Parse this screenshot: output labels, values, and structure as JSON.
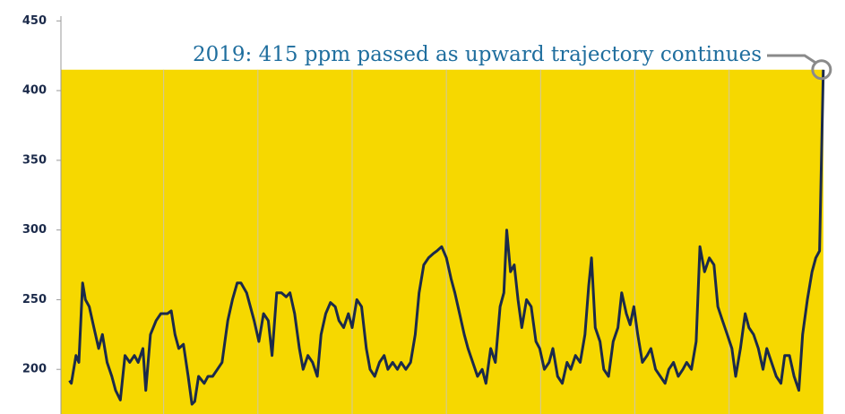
{
  "chart_data": {
    "type": "line",
    "annotation": {
      "text": "2019: 415 ppm passed as upward trajectory continues",
      "value": 415
    },
    "x": [
      -800,
      -798,
      -793,
      -790,
      -786,
      -783,
      -779,
      -774,
      -769,
      -765,
      -760,
      -755,
      -751,
      -746,
      -741,
      -736,
      -731,
      -727,
      -722,
      -719,
      -714,
      -708,
      -703,
      -696,
      -692,
      -688,
      -684,
      -679,
      -674,
      -670,
      -667,
      -663,
      -657,
      -653,
      -648,
      -643,
      -638,
      -632,
      -627,
      -622,
      -618,
      -612,
      -608,
      -604,
      -599,
      -594,
      -589,
      -585,
      -580,
      -575,
      -570,
      -566,
      -561,
      -556,
      -552,
      -547,
      -542,
      -537,
      -533,
      -528,
      -523,
      -518,
      -514,
      -509,
      -504,
      -500,
      -495,
      -490,
      -485,
      -481,
      -476,
      -471,
      -466,
      -462,
      -457,
      -452,
      -448,
      -443,
      -438,
      -433,
      -429,
      -424,
      -419,
      -414,
      -410,
      -405,
      -400,
      -395,
      -391,
      -386,
      -381,
      -377,
      -372,
      -367,
      -362,
      -358,
      -353,
      -348,
      -343,
      -339,
      -336,
      -332,
      -328,
      -324,
      -320,
      -315,
      -310,
      -305,
      -301,
      -296,
      -291,
      -287,
      -282,
      -277,
      -272,
      -268,
      -263,
      -258,
      -253,
      -249,
      -246,
      -242,
      -237,
      -233,
      -228,
      -223,
      -218,
      -214,
      -209,
      -205,
      -201,
      -197,
      -192,
      -187,
      -183,
      -178,
      -173,
      -168,
      -164,
      -159,
      -154,
      -149,
      -145,
      -140,
      -135,
      -131,
      -126,
      -121,
      -116,
      -112,
      -107,
      -102,
      -97,
      -93,
      -88,
      -83,
      -79,
      -74,
      -69,
      -64,
      -60,
      -55,
      -50,
      -45,
      -41,
      -36,
      -31,
      -26,
      -22,
      -17,
      -12,
      -8,
      -4,
      0
    ],
    "values": [
      192,
      190,
      210,
      205,
      262,
      250,
      245,
      230,
      215,
      225,
      205,
      195,
      185,
      178,
      210,
      205,
      210,
      205,
      215,
      185,
      225,
      235,
      240,
      240,
      242,
      225,
      215,
      218,
      195,
      175,
      177,
      195,
      190,
      195,
      195,
      200,
      205,
      235,
      250,
      262,
      262,
      255,
      245,
      235,
      220,
      240,
      235,
      210,
      255,
      255,
      252,
      255,
      240,
      215,
      200,
      210,
      205,
      195,
      225,
      240,
      248,
      245,
      235,
      230,
      240,
      230,
      250,
      245,
      215,
      200,
      195,
      205,
      210,
      200,
      205,
      200,
      205,
      200,
      205,
      225,
      255,
      275,
      280,
      283,
      285,
      288,
      280,
      265,
      255,
      240,
      225,
      215,
      205,
      195,
      200,
      190,
      215,
      205,
      245,
      255,
      300,
      270,
      275,
      250,
      230,
      250,
      245,
      220,
      215,
      200,
      205,
      215,
      195,
      190,
      205,
      200,
      210,
      205,
      225,
      260,
      280,
      230,
      220,
      200,
      195,
      220,
      230,
      255,
      240,
      232,
      245,
      225,
      205,
      210,
      215,
      200,
      195,
      190,
      200,
      205,
      195,
      200,
      205,
      200,
      220,
      288,
      270,
      280,
      275,
      245,
      235,
      225,
      215,
      195,
      215,
      240,
      230,
      225,
      215,
      200,
      215,
      205,
      195,
      190,
      210,
      210,
      195,
      185,
      225,
      250,
      270,
      280,
      285,
      415
    ],
    "color": "#1b2a4a",
    "fill_color": "#f6d800",
    "annotation_color": "#1f6e9e",
    "xlim": [
      -809,
      3
    ],
    "xticks": [
      -700,
      -600,
      -500,
      -400,
      -300,
      -200,
      -100
    ],
    "ylim": [
      168,
      465
    ],
    "yticks": [
      200,
      250,
      300,
      350,
      400,
      450
    ],
    "grid": true
  }
}
